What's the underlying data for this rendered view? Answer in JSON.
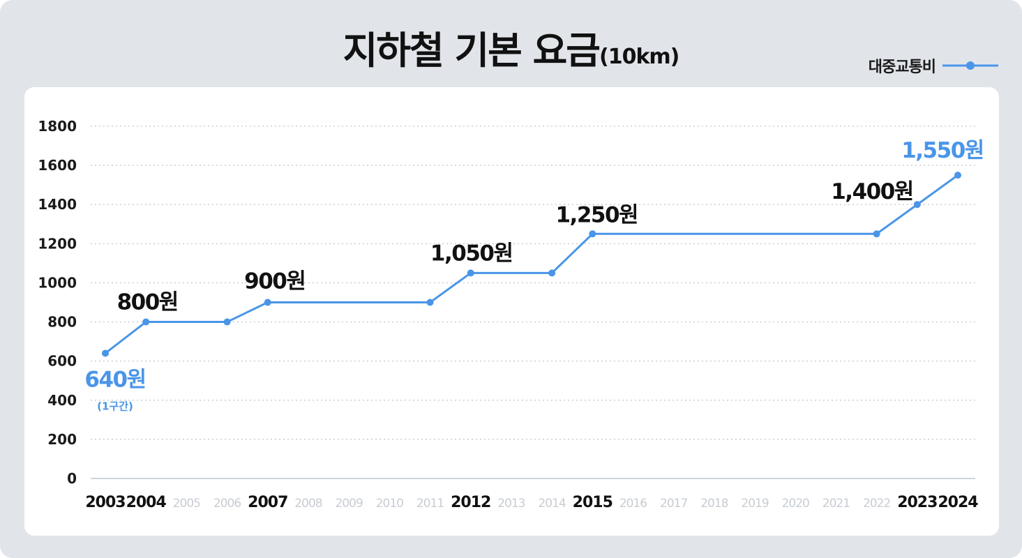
{
  "title": "지하철 기본 요금",
  "title_suffix": "(10km)",
  "legend": {
    "label": "대중교통비",
    "color": "#4a95e8"
  },
  "chart_data": {
    "type": "line",
    "title": "지하철 기본 요금(10km)",
    "categories": [
      "2003",
      "2004",
      "2005",
      "2006",
      "2007",
      "2008",
      "2009",
      "2010",
      "2011",
      "2012",
      "2013",
      "2014",
      "2015",
      "2016",
      "2017",
      "2018",
      "2019",
      "2020",
      "2021",
      "2022",
      "2023",
      "2024"
    ],
    "major_categories": [
      "2003",
      "2004",
      "2007",
      "2012",
      "2015",
      "2023",
      "2024"
    ],
    "series": [
      {
        "name": "대중교통비",
        "color": "#4a95e8",
        "points": [
          {
            "x": "2003",
            "y": 640
          },
          {
            "x": "2004",
            "y": 800
          },
          {
            "x": "2006",
            "y": 800
          },
          {
            "x": "2007",
            "y": 900
          },
          {
            "x": "2011",
            "y": 900
          },
          {
            "x": "2012",
            "y": 1050
          },
          {
            "x": "2014",
            "y": 1050
          },
          {
            "x": "2015",
            "y": 1250
          },
          {
            "x": "2022",
            "y": 1250
          },
          {
            "x": "2023",
            "y": 1400
          },
          {
            "x": "2024",
            "y": 1550
          }
        ]
      }
    ],
    "data_labels": [
      {
        "x": "2003",
        "y": 640,
        "text": "640원",
        "note": "(1구간)",
        "highlight": true,
        "position": "below"
      },
      {
        "x": "2004",
        "y": 800,
        "text": "800원",
        "highlight": false,
        "position": "above"
      },
      {
        "x": "2007",
        "y": 900,
        "text": "900원",
        "highlight": false,
        "position": "above"
      },
      {
        "x": "2012",
        "y": 1050,
        "text": "1,050원",
        "highlight": false,
        "position": "above"
      },
      {
        "x": "2015",
        "y": 1250,
        "text": "1,250원",
        "highlight": false,
        "position": "above"
      },
      {
        "x": "2023",
        "y": 1400,
        "text": "1,400원",
        "highlight": false,
        "position": "above-left"
      },
      {
        "x": "2024",
        "y": 1550,
        "text": "1,550원",
        "highlight": true,
        "position": "above"
      }
    ],
    "xlabel": "",
    "ylabel": "",
    "ylim": [
      0,
      1800
    ],
    "yticks": [
      0,
      200,
      400,
      600,
      800,
      1000,
      1200,
      1400,
      1600,
      1800
    ],
    "grid": true,
    "legend_position": "top-right"
  }
}
